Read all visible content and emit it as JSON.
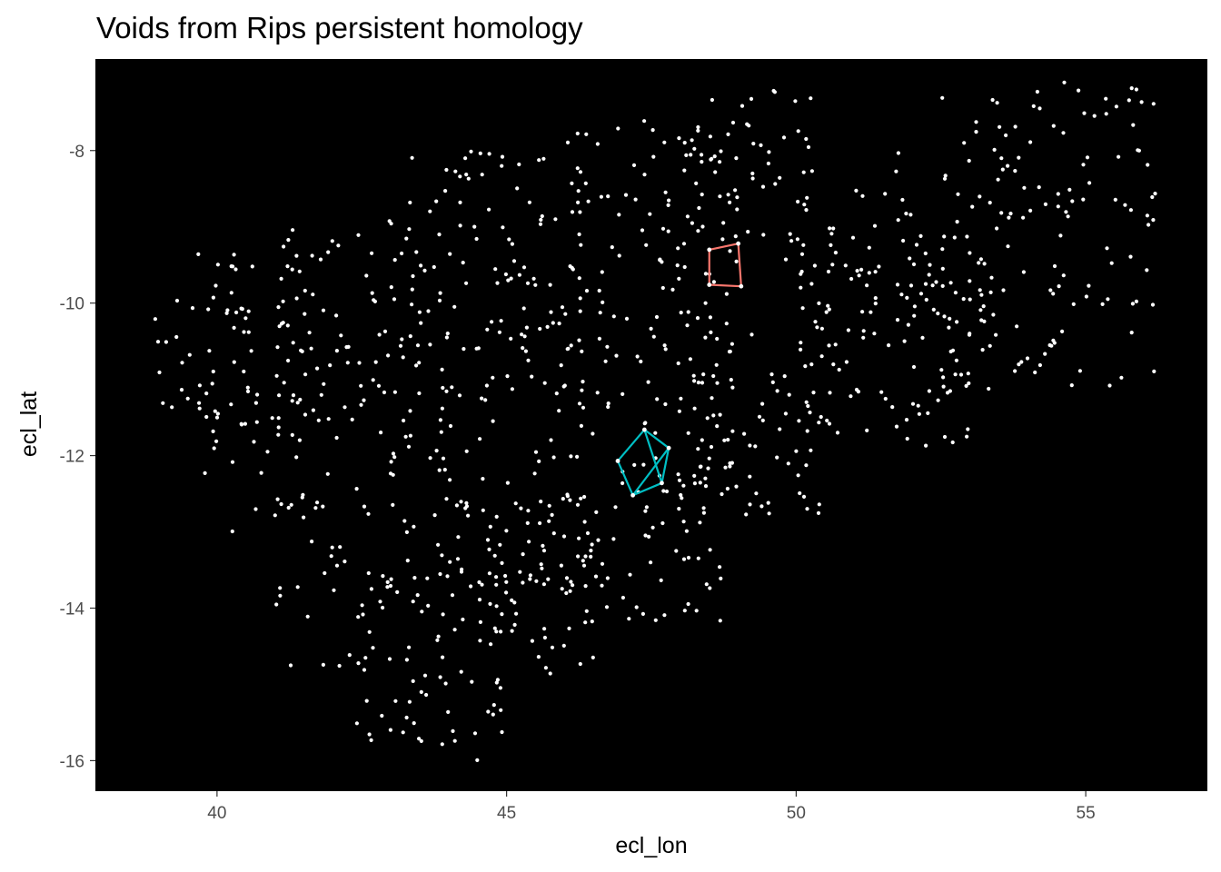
{
  "chart_data": {
    "type": "scatter",
    "title": "Voids from Rips persistent homology",
    "xlabel": "ecl_lon",
    "ylabel": "ecl_lat",
    "xlim": [
      37.9,
      57.1
    ],
    "ylim": [
      -16.4,
      -6.8
    ],
    "x_ticks": [
      40,
      45,
      50,
      55
    ],
    "y_ticks": [
      -16,
      -14,
      -12,
      -10,
      -8
    ],
    "x_tick_labels": [
      "40",
      "45",
      "50",
      "55"
    ],
    "y_tick_labels": [
      "-16",
      "-14",
      "-12",
      "-10",
      "-8"
    ],
    "background_color": "#000000",
    "point_color": "#ffffff",
    "grid": false,
    "legend": "none",
    "point_regions": [
      {
        "x": [
          38.7,
          41.6
        ],
        "y": [
          -11.6,
          -9.3
        ],
        "count": 70
      },
      {
        "x": [
          39.7,
          41.5
        ],
        "y": [
          -13.0,
          -11.4
        ],
        "count": 18
      },
      {
        "x": [
          41.0,
          43.5
        ],
        "y": [
          -11.8,
          -8.9
        ],
        "count": 80
      },
      {
        "x": [
          41.0,
          43.0
        ],
        "y": [
          -14.8,
          -12.0
        ],
        "count": 40
      },
      {
        "x": [
          42.3,
          45.0
        ],
        "y": [
          -16.0,
          -13.5
        ],
        "count": 65
      },
      {
        "x": [
          43.0,
          46.5
        ],
        "y": [
          -13.8,
          -11.0
        ],
        "count": 100
      },
      {
        "x": [
          43.3,
          46.3
        ],
        "y": [
          -11.2,
          -8.0
        ],
        "count": 110
      },
      {
        "x": [
          44.5,
          46.5
        ],
        "y": [
          -15.0,
          -13.0
        ],
        "count": 45
      },
      {
        "x": [
          46.0,
          49.0
        ],
        "y": [
          -11.8,
          -7.6
        ],
        "count": 120
      },
      {
        "x": [
          46.0,
          48.8
        ],
        "y": [
          -14.2,
          -12.0
        ],
        "count": 70
      },
      {
        "x": [
          48.0,
          50.5
        ],
        "y": [
          -12.8,
          -10.0
        ],
        "count": 70
      },
      {
        "x": [
          48.0,
          50.3
        ],
        "y": [
          -9.5,
          -7.2
        ],
        "count": 55
      },
      {
        "x": [
          50.0,
          53.0
        ],
        "y": [
          -12.0,
          -9.0
        ],
        "count": 95
      },
      {
        "x": [
          50.5,
          53.5
        ],
        "y": [
          -10.5,
          -8.0
        ],
        "count": 50
      },
      {
        "x": [
          52.5,
          56.2
        ],
        "y": [
          -11.2,
          -7.1
        ],
        "count": 130
      }
    ],
    "series": [
      {
        "color": "#f8766d",
        "edges": [
          [
            [
              48.5,
              -9.3
            ],
            [
              49.0,
              -9.22
            ]
          ],
          [
            [
              49.0,
              -9.22
            ],
            [
              49.05,
              -9.78
            ]
          ],
          [
            [
              49.05,
              -9.78
            ],
            [
              48.5,
              -9.76
            ]
          ],
          [
            [
              48.5,
              -9.76
            ],
            [
              48.5,
              -9.3
            ]
          ]
        ]
      },
      {
        "color": "#00bfc4",
        "edges": [
          [
            [
              46.92,
              -12.07
            ],
            [
              47.38,
              -11.66
            ]
          ],
          [
            [
              47.38,
              -11.66
            ],
            [
              47.8,
              -11.9
            ]
          ],
          [
            [
              47.8,
              -11.9
            ],
            [
              47.68,
              -12.36
            ]
          ],
          [
            [
              47.68,
              -12.36
            ],
            [
              47.18,
              -12.52
            ]
          ],
          [
            [
              47.18,
              -12.52
            ],
            [
              46.92,
              -12.07
            ]
          ],
          [
            [
              47.18,
              -12.52
            ],
            [
              47.8,
              -11.9
            ]
          ],
          [
            [
              47.38,
              -11.66
            ],
            [
              47.68,
              -12.36
            ]
          ]
        ]
      }
    ]
  }
}
